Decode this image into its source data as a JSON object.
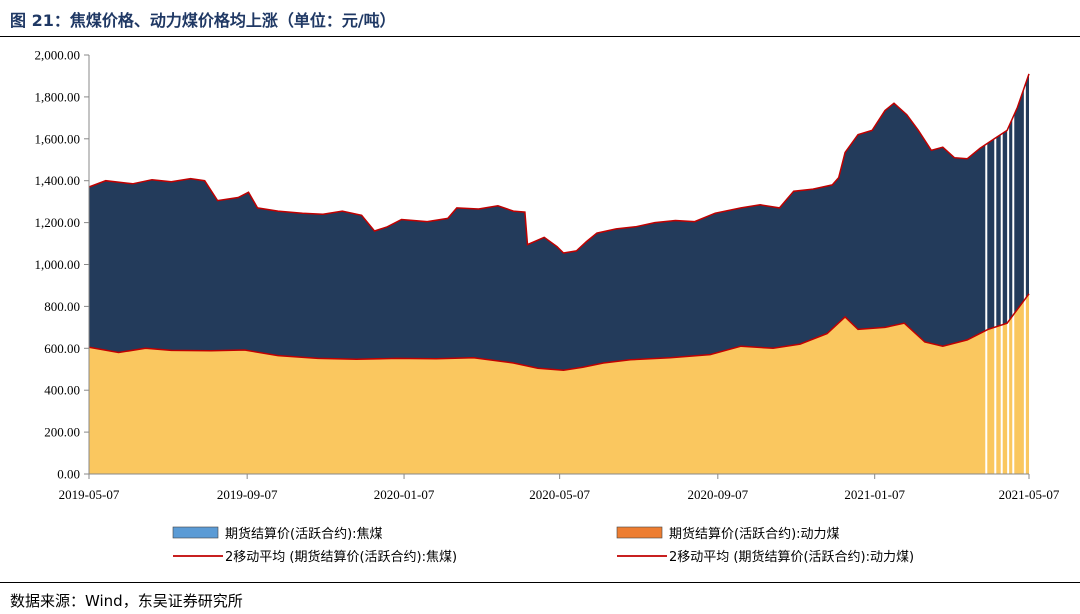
{
  "figure": {
    "title": "图 21：焦煤价格、动力煤价格均上涨（单位：元/吨）",
    "source": "数据来源：Wind，东吴证券研究所"
  },
  "colors": {
    "coking_fill": "#233B5B",
    "thermal_fill": "#FAC75F",
    "ma_line": "#C00000",
    "coking_legend": "#5B9BD5",
    "thermal_legend": "#ED7D31"
  },
  "chart_data": {
    "type": "area",
    "title": "",
    "xlabel": "",
    "ylabel": "",
    "ylim": [
      0,
      2000
    ],
    "yticks": [
      0,
      200,
      400,
      600,
      800,
      1000,
      1200,
      1400,
      1600,
      1800,
      2000
    ],
    "ytick_labels": [
      "0.00",
      "200.00",
      "400.00",
      "600.00",
      "800.00",
      "1,000.00",
      "1,200.00",
      "1,400.00",
      "1,600.00",
      "1,800.00",
      "2,000.00"
    ],
    "xlim": [
      "2019-05-07",
      "2021-05-07"
    ],
    "xticks": [
      "2019-05-07",
      "2019-09-07",
      "2020-01-07",
      "2020-05-07",
      "2020-09-07",
      "2021-01-07",
      "2021-05-07"
    ],
    "grid": false,
    "legend_position": "bottom",
    "legend": [
      "期货结算价(活跃合约):焦煤",
      "期货结算价(活跃合约):动力煤",
      "2移动平均 (期货结算价(活跃合约):焦煤)",
      "2移动平均 (期货结算价(活跃合约):动力煤)"
    ],
    "series": [
      {
        "name": "期货结算价(活跃合约):焦煤",
        "points": [
          [
            "2019-05-07",
            1370
          ],
          [
            "2019-05-20",
            1400
          ],
          [
            "2019-06-10",
            1385
          ],
          [
            "2019-06-25",
            1405
          ],
          [
            "2019-07-10",
            1395
          ],
          [
            "2019-07-25",
            1410
          ],
          [
            "2019-08-05",
            1400
          ],
          [
            "2019-08-15",
            1305
          ],
          [
            "2019-08-31",
            1320
          ],
          [
            "2019-09-08",
            1345
          ],
          [
            "2019-09-15",
            1270
          ],
          [
            "2019-10-01",
            1255
          ],
          [
            "2019-10-20",
            1245
          ],
          [
            "2019-11-05",
            1240
          ],
          [
            "2019-11-20",
            1255
          ],
          [
            "2019-12-05",
            1235
          ],
          [
            "2019-12-15",
            1160
          ],
          [
            "2019-12-25",
            1180
          ],
          [
            "2020-01-05",
            1215
          ],
          [
            "2020-01-25",
            1205
          ],
          [
            "2020-02-10",
            1220
          ],
          [
            "2020-02-17",
            1270
          ],
          [
            "2020-03-05",
            1265
          ],
          [
            "2020-03-20",
            1280
          ],
          [
            "2020-04-01",
            1255
          ],
          [
            "2020-04-10",
            1250
          ],
          [
            "2020-04-12",
            1095
          ],
          [
            "2020-04-25",
            1130
          ],
          [
            "2020-05-05",
            1085
          ],
          [
            "2020-05-10",
            1055
          ],
          [
            "2020-05-20",
            1065
          ],
          [
            "2020-05-28",
            1110
          ],
          [
            "2020-06-05",
            1150
          ],
          [
            "2020-06-20",
            1170
          ],
          [
            "2020-07-05",
            1180
          ],
          [
            "2020-07-20",
            1200
          ],
          [
            "2020-08-05",
            1210
          ],
          [
            "2020-08-20",
            1205
          ],
          [
            "2020-09-05",
            1245
          ],
          [
            "2020-09-25",
            1270
          ],
          [
            "2020-10-10",
            1285
          ],
          [
            "2020-10-25",
            1270
          ],
          [
            "2020-11-05",
            1350
          ],
          [
            "2020-11-20",
            1360
          ],
          [
            "2020-12-05",
            1380
          ],
          [
            "2020-12-10",
            1415
          ],
          [
            "2020-12-15",
            1535
          ],
          [
            "2020-12-25",
            1620
          ],
          [
            "2021-01-05",
            1640
          ],
          [
            "2021-01-15",
            1735
          ],
          [
            "2021-01-22",
            1770
          ],
          [
            "2021-02-01",
            1715
          ],
          [
            "2021-02-10",
            1640
          ],
          [
            "2021-02-20",
            1545
          ],
          [
            "2021-03-01",
            1560
          ],
          [
            "2021-03-10",
            1510
          ],
          [
            "2021-03-20",
            1505
          ],
          [
            "2021-03-30",
            1555
          ],
          [
            "2021-04-10",
            1600
          ],
          [
            "2021-04-20",
            1640
          ],
          [
            "2021-04-28",
            1750
          ],
          [
            "2021-05-07",
            1910
          ]
        ]
      },
      {
        "name": "期货结算价(活跃合约):动力煤",
        "points": [
          [
            "2019-05-07",
            605
          ],
          [
            "2019-05-30",
            580
          ],
          [
            "2019-06-20",
            600
          ],
          [
            "2019-07-10",
            590
          ],
          [
            "2019-08-10",
            588
          ],
          [
            "2019-09-05",
            592
          ],
          [
            "2019-10-01",
            565
          ],
          [
            "2019-11-01",
            552
          ],
          [
            "2019-12-01",
            548
          ],
          [
            "2020-01-01",
            552
          ],
          [
            "2020-02-01",
            550
          ],
          [
            "2020-03-01",
            555
          ],
          [
            "2020-04-01",
            530
          ],
          [
            "2020-04-20",
            505
          ],
          [
            "2020-05-10",
            495
          ],
          [
            "2020-05-25",
            510
          ],
          [
            "2020-06-10",
            530
          ],
          [
            "2020-07-01",
            545
          ],
          [
            "2020-08-01",
            555
          ],
          [
            "2020-09-01",
            570
          ],
          [
            "2020-09-25",
            610
          ],
          [
            "2020-10-20",
            600
          ],
          [
            "2020-11-10",
            620
          ],
          [
            "2020-12-01",
            670
          ],
          [
            "2020-12-15",
            750
          ],
          [
            "2020-12-25",
            690
          ],
          [
            "2021-01-15",
            700
          ],
          [
            "2021-01-30",
            720
          ],
          [
            "2021-02-15",
            630
          ],
          [
            "2021-03-01",
            610
          ],
          [
            "2021-03-20",
            640
          ],
          [
            "2021-04-05",
            690
          ],
          [
            "2021-04-20",
            720
          ],
          [
            "2021-05-07",
            860
          ]
        ]
      }
    ]
  }
}
